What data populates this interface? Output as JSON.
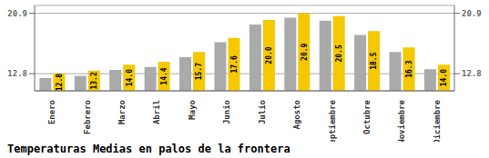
{
  "chart_data": {
    "type": "bar",
    "title": "Temperaturas Medias en palos de la frontera",
    "categories": [
      "Enero",
      "Febrero",
      "Marzo",
      "Abril",
      "Mayo",
      "Junio",
      "Julio",
      "Agosto",
      "Septiembre",
      "Octubre",
      "Noviembre",
      "Diciembre"
    ],
    "series": [
      {
        "color": "#AAAAAA",
        "values": [
          12.2,
          12.5,
          13.3,
          13.7,
          15.0,
          17.0,
          19.4,
          20.3,
          19.9,
          18.0,
          15.7,
          13.4
        ]
      },
      {
        "color": "#F5C800",
        "values": [
          12.8,
          13.2,
          14.0,
          14.4,
          15.7,
          17.6,
          20.0,
          20.9,
          20.5,
          18.5,
          16.3,
          14.0
        ],
        "value_labels": [
          "12.8",
          "13.2",
          "14.0",
          "14.4",
          "15.7",
          "17.6",
          "20.0",
          "20.9",
          "20.5",
          "18.5",
          "16.3",
          "14.0"
        ],
        "data_labels": true
      }
    ],
    "ylim": [
      10.5,
      21.945
    ],
    "yticks": [
      12.8,
      20.9
    ],
    "y2lim": [
      10.5,
      21.945
    ],
    "y2ticks": [
      12.8,
      20.9
    ],
    "grid": true
  }
}
